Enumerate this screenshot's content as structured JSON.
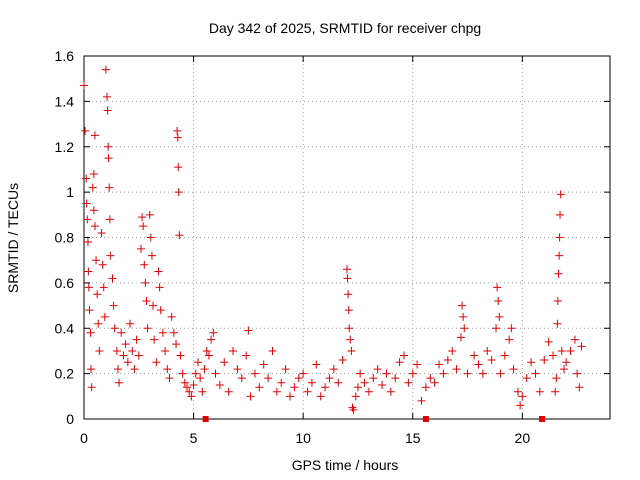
{
  "chart_data": {
    "type": "scatter",
    "title": "Day 342 of 2025, SRMTID for receiver chpg",
    "xlabel": "GPS time / hours",
    "ylabel": "SRMTID / TECUs",
    "xlim": [
      0,
      24
    ],
    "ylim": [
      0,
      1.6
    ],
    "xticks": [
      0,
      5,
      10,
      15,
      20
    ],
    "xtick_labels": [
      "0",
      "5",
      "10",
      "15",
      "20"
    ],
    "yticks": [
      0,
      0.2,
      0.4,
      0.6,
      0.8,
      1.0,
      1.2,
      1.4,
      1.6
    ],
    "ytick_labels": [
      "0",
      "0.2",
      "0.4",
      "0.6",
      "0.8",
      "1",
      "1.2",
      "1.4",
      "1.6"
    ],
    "grid": true,
    "marker": "plus",
    "color": "#e00000",
    "gap_markers_x": [
      5.55,
      15.6,
      20.9
    ],
    "series": [
      {
        "name": "SRMTID",
        "points": [
          [
            0.0,
            1.47
          ],
          [
            0.05,
            1.27
          ],
          [
            0.1,
            1.06
          ],
          [
            0.12,
            0.95
          ],
          [
            0.15,
            0.88
          ],
          [
            0.18,
            0.78
          ],
          [
            0.2,
            0.65
          ],
          [
            0.22,
            0.58
          ],
          [
            0.25,
            0.48
          ],
          [
            0.3,
            0.38
          ],
          [
            0.32,
            0.22
          ],
          [
            0.35,
            0.14
          ],
          [
            0.4,
            1.02
          ],
          [
            0.45,
            0.92
          ],
          [
            0.5,
            0.85
          ],
          [
            0.55,
            0.7
          ],
          [
            0.6,
            0.55
          ],
          [
            0.65,
            0.42
          ],
          [
            0.7,
            0.3
          ],
          [
            0.5,
            1.25
          ],
          [
            0.45,
            1.08
          ],
          [
            0.8,
            0.82
          ],
          [
            0.85,
            0.68
          ],
          [
            0.9,
            0.58
          ],
          [
            0.95,
            0.45
          ],
          [
            1.0,
            1.54
          ],
          [
            1.05,
            1.42
          ],
          [
            1.08,
            1.36
          ],
          [
            1.1,
            1.2
          ],
          [
            1.12,
            1.15
          ],
          [
            1.15,
            1.02
          ],
          [
            1.18,
            0.88
          ],
          [
            1.2,
            0.72
          ],
          [
            1.3,
            0.62
          ],
          [
            1.35,
            0.5
          ],
          [
            1.4,
            0.4
          ],
          [
            1.5,
            0.3
          ],
          [
            1.55,
            0.22
          ],
          [
            1.6,
            0.16
          ],
          [
            1.7,
            0.38
          ],
          [
            1.8,
            0.28
          ],
          [
            1.9,
            0.33
          ],
          [
            2.0,
            0.25
          ],
          [
            2.1,
            0.42
          ],
          [
            2.2,
            0.3
          ],
          [
            2.3,
            0.22
          ],
          [
            2.4,
            0.35
          ],
          [
            2.5,
            0.28
          ],
          [
            2.6,
            0.75
          ],
          [
            2.65,
            0.89
          ],
          [
            2.7,
            0.85
          ],
          [
            2.75,
            0.68
          ],
          [
            2.8,
            0.6
          ],
          [
            2.85,
            0.52
          ],
          [
            2.9,
            0.4
          ],
          [
            3.0,
            0.9
          ],
          [
            3.05,
            0.8
          ],
          [
            3.1,
            0.72
          ],
          [
            3.15,
            0.5
          ],
          [
            3.2,
            0.35
          ],
          [
            3.3,
            0.25
          ],
          [
            3.4,
            0.65
          ],
          [
            3.45,
            0.58
          ],
          [
            3.5,
            0.48
          ],
          [
            3.6,
            0.38
          ],
          [
            3.7,
            0.3
          ],
          [
            3.8,
            0.22
          ],
          [
            3.9,
            0.18
          ],
          [
            4.0,
            0.45
          ],
          [
            4.1,
            0.38
          ],
          [
            4.2,
            0.33
          ],
          [
            4.25,
            1.27
          ],
          [
            4.28,
            1.24
          ],
          [
            4.3,
            1.11
          ],
          [
            4.32,
            1.0
          ],
          [
            4.35,
            0.81
          ],
          [
            4.4,
            0.28
          ],
          [
            4.5,
            0.2
          ],
          [
            4.6,
            0.16
          ],
          [
            4.7,
            0.14
          ],
          [
            4.8,
            0.12
          ],
          [
            4.9,
            0.1
          ],
          [
            5.0,
            0.15
          ],
          [
            5.1,
            0.2
          ],
          [
            5.2,
            0.25
          ],
          [
            5.3,
            0.18
          ],
          [
            5.4,
            0.12
          ],
          [
            5.5,
            0.22
          ],
          [
            5.6,
            0.3
          ],
          [
            5.7,
            0.28
          ],
          [
            5.8,
            0.35
          ],
          [
            5.9,
            0.38
          ],
          [
            6.0,
            0.2
          ],
          [
            6.2,
            0.15
          ],
          [
            6.4,
            0.25
          ],
          [
            6.6,
            0.12
          ],
          [
            6.8,
            0.3
          ],
          [
            7.0,
            0.22
          ],
          [
            7.2,
            0.18
          ],
          [
            7.4,
            0.28
          ],
          [
            7.5,
            0.39
          ],
          [
            7.6,
            0.1
          ],
          [
            7.8,
            0.2
          ],
          [
            8.0,
            0.14
          ],
          [
            8.2,
            0.24
          ],
          [
            8.4,
            0.18
          ],
          [
            8.6,
            0.3
          ],
          [
            8.8,
            0.12
          ],
          [
            9.0,
            0.16
          ],
          [
            9.2,
            0.22
          ],
          [
            9.4,
            0.1
          ],
          [
            9.6,
            0.14
          ],
          [
            9.8,
            0.18
          ],
          [
            10.0,
            0.2
          ],
          [
            10.2,
            0.12
          ],
          [
            10.4,
            0.16
          ],
          [
            10.6,
            0.24
          ],
          [
            10.8,
            0.1
          ],
          [
            11.0,
            0.14
          ],
          [
            11.2,
            0.18
          ],
          [
            11.4,
            0.22
          ],
          [
            11.6,
            0.16
          ],
          [
            11.8,
            0.26
          ],
          [
            12.0,
            0.66
          ],
          [
            12.02,
            0.62
          ],
          [
            12.05,
            0.55
          ],
          [
            12.08,
            0.48
          ],
          [
            12.1,
            0.4
          ],
          [
            12.15,
            0.35
          ],
          [
            12.2,
            0.3
          ],
          [
            12.25,
            0.05
          ],
          [
            12.3,
            0.04
          ],
          [
            12.4,
            0.1
          ],
          [
            12.5,
            0.14
          ],
          [
            12.6,
            0.2
          ],
          [
            12.8,
            0.16
          ],
          [
            13.0,
            0.12
          ],
          [
            13.2,
            0.18
          ],
          [
            13.4,
            0.22
          ],
          [
            13.6,
            0.15
          ],
          [
            13.8,
            0.2
          ],
          [
            14.0,
            0.12
          ],
          [
            14.2,
            0.18
          ],
          [
            14.4,
            0.25
          ],
          [
            14.6,
            0.28
          ],
          [
            14.8,
            0.16
          ],
          [
            15.0,
            0.2
          ],
          [
            15.2,
            0.24
          ],
          [
            15.4,
            0.08
          ],
          [
            15.6,
            0.14
          ],
          [
            15.8,
            0.18
          ],
          [
            16.0,
            0.16
          ],
          [
            16.2,
            0.24
          ],
          [
            16.4,
            0.2
          ],
          [
            16.6,
            0.26
          ],
          [
            16.8,
            0.3
          ],
          [
            17.0,
            0.22
          ],
          [
            17.2,
            0.36
          ],
          [
            17.25,
            0.5
          ],
          [
            17.3,
            0.45
          ],
          [
            17.35,
            0.4
          ],
          [
            17.5,
            0.2
          ],
          [
            17.8,
            0.28
          ],
          [
            18.0,
            0.24
          ],
          [
            18.2,
            0.2
          ],
          [
            18.4,
            0.3
          ],
          [
            18.6,
            0.26
          ],
          [
            18.8,
            0.4
          ],
          [
            18.85,
            0.58
          ],
          [
            18.9,
            0.52
          ],
          [
            18.95,
            0.45
          ],
          [
            19.0,
            0.2
          ],
          [
            19.2,
            0.28
          ],
          [
            19.4,
            0.35
          ],
          [
            19.5,
            0.4
          ],
          [
            19.6,
            0.22
          ],
          [
            19.8,
            0.12
          ],
          [
            19.9,
            0.06
          ],
          [
            20.0,
            0.1
          ],
          [
            20.2,
            0.18
          ],
          [
            20.4,
            0.25
          ],
          [
            20.6,
            0.2
          ],
          [
            20.8,
            0.12
          ],
          [
            21.0,
            0.26
          ],
          [
            21.2,
            0.34
          ],
          [
            21.4,
            0.28
          ],
          [
            21.5,
            0.12
          ],
          [
            21.55,
            0.18
          ],
          [
            21.6,
            0.42
          ],
          [
            21.62,
            0.52
          ],
          [
            21.65,
            0.64
          ],
          [
            21.68,
            0.72
          ],
          [
            21.7,
            0.8
          ],
          [
            21.72,
            0.9
          ],
          [
            21.75,
            0.99
          ],
          [
            21.8,
            0.3
          ],
          [
            21.9,
            0.22
          ],
          [
            22.0,
            0.25
          ],
          [
            22.2,
            0.3
          ],
          [
            22.4,
            0.35
          ],
          [
            22.5,
            0.2
          ],
          [
            22.6,
            0.14
          ],
          [
            22.7,
            0.32
          ]
        ]
      }
    ]
  }
}
